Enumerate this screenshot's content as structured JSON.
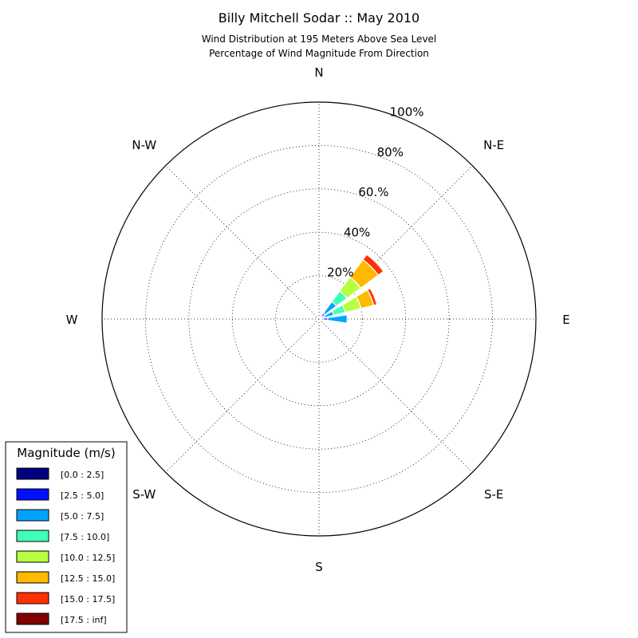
{
  "chart_data": {
    "type": "windrose",
    "title": "Billy Mitchell Sodar :: May 2010",
    "subtitle_lines": [
      "Wind Distribution at 195 Meters Above Sea Level",
      "Percentage of Wind Magnitude From Direction"
    ],
    "directions": [
      "N",
      "N-E",
      "E",
      "S-E",
      "S",
      "S-W",
      "W",
      "N-W"
    ],
    "radial_ticks": [
      "20%",
      "40%",
      "60.%",
      "80%",
      "100%"
    ],
    "radial_tick_values": [
      20,
      40,
      60,
      80,
      100
    ],
    "rmax": 100,
    "grid": true,
    "legend": {
      "title": "Magnitude (m/s)",
      "placement": "lower-left",
      "bins": [
        {
          "label": "[0.0 : 2.5]",
          "color": "#000080"
        },
        {
          "label": "[2.5 : 5.0]",
          "color": "#0010ff"
        },
        {
          "label": "[5.0 : 7.5]",
          "color": "#00a4ff"
        },
        {
          "label": "[7.5 : 10.0]",
          "color": "#40ffb7"
        },
        {
          "label": "[10.0 : 12.5]",
          "color": "#b7ff40"
        },
        {
          "label": "[12.5 : 15.0]",
          "color": "#ffb900"
        },
        {
          "label": "[15.0 : 17.5]",
          "color": "#ff3000"
        },
        {
          "label": "[17.5 : inf]",
          "color": "#800000"
        }
      ]
    },
    "series": [
      {
        "direction_deg": 45,
        "cumulative": [
          1.0,
          3.5,
          10.0,
          16.0,
          24.0,
          34.0,
          37.0,
          37.0
        ]
      },
      {
        "direction_deg": 67.5,
        "cumulative": [
          1.0,
          2.5,
          7.0,
          12.5,
          20.0,
          26.0,
          27.5,
          27.5
        ]
      },
      {
        "direction_deg": 90,
        "cumulative": [
          1.0,
          4.0,
          13.0,
          13.0,
          13.0,
          13.0,
          13.0,
          13.0
        ]
      }
    ]
  }
}
